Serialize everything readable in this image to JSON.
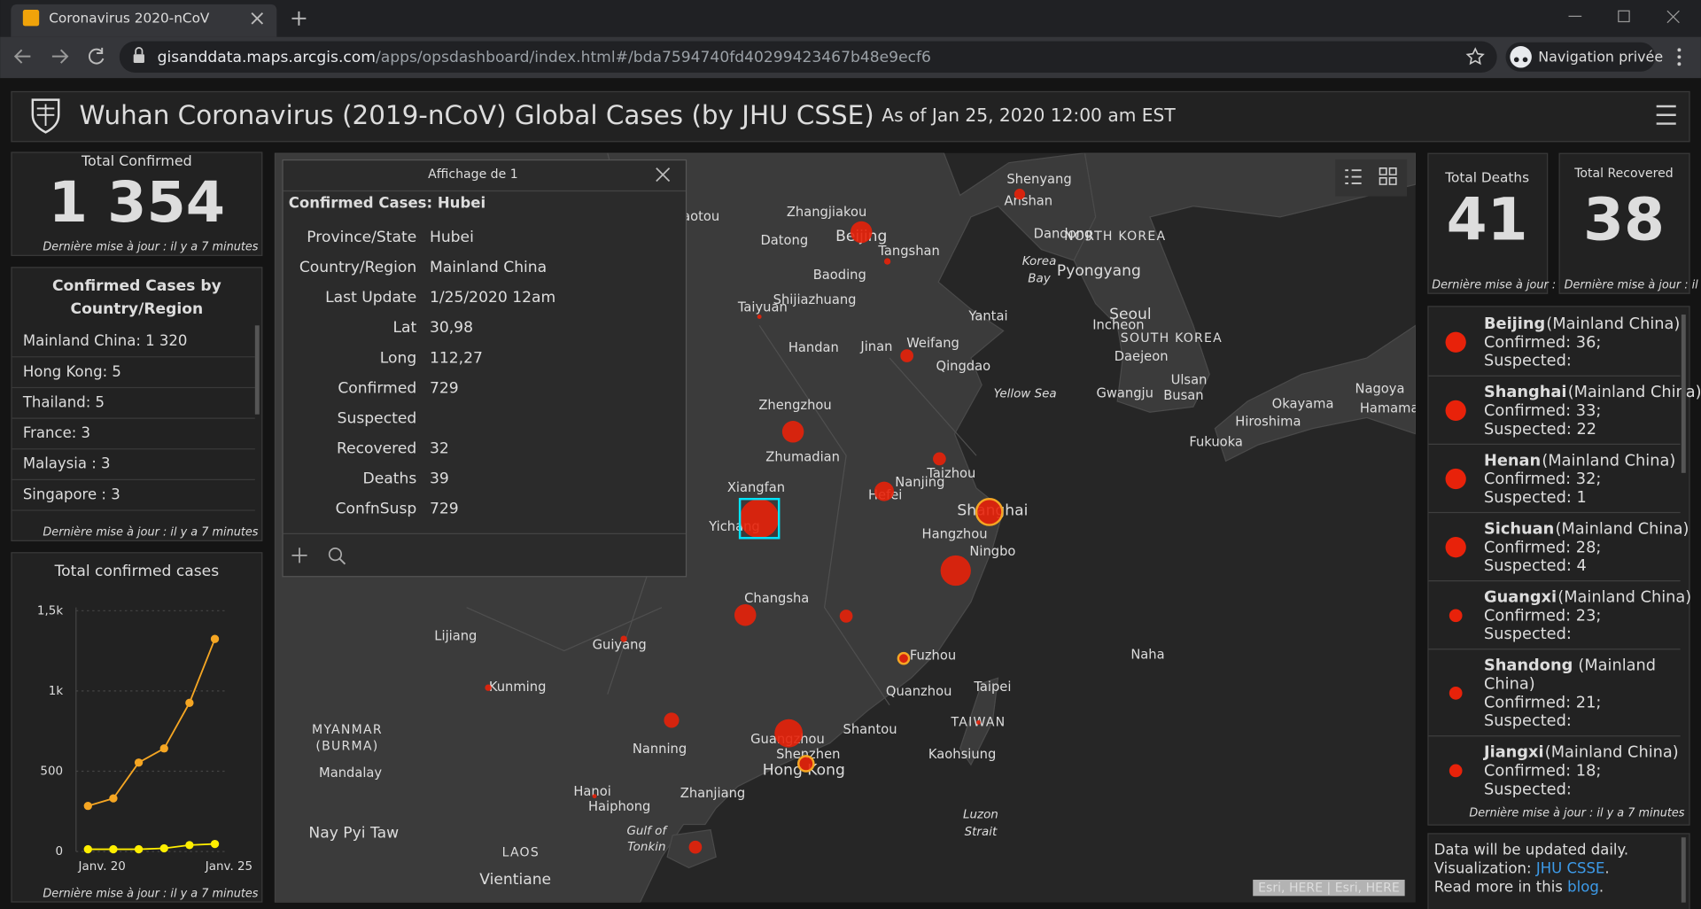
{
  "browser": {
    "tab_title": "Coronavirus 2020-nCoV",
    "url_domain": "gisanddata.maps.arcgis.com",
    "url_path": "/apps/opsdashboard/index.html#/bda7594740fd40299423467b48e9ecf6",
    "incognito": "Navigation privée"
  },
  "header": {
    "title": "Wuhan Coronavirus (2019-nCoV) Global Cases (by JHU CSSE)",
    "subtitle": "As of Jan 25, 2020 12:00 am EST"
  },
  "total_confirmed": {
    "label": "Total Confirmed",
    "value": "1 354",
    "footer": "Dernière mise à jour : il y a 7 minutes"
  },
  "country_list": {
    "title_lines": [
      "Confirmed Cases by",
      "Country/Region"
    ],
    "items": [
      "Mainland China:  1 320",
      "Hong Kong:  5",
      "Thailand:  5",
      "France:  3",
      "Malaysia :  3",
      "Singapore :  3"
    ],
    "footer": "Dernière mise à jour : il y a 7 minutes"
  },
  "chart": {
    "type": "line",
    "title": "Total confirmed cases",
    "categories": [
      "Janv. 20",
      null,
      null,
      null,
      null,
      "Janv. 25"
    ],
    "ylim": [
      0,
      1500
    ],
    "yticks": [
      0,
      500,
      {
        "value": 1000,
        "label": "1k"
      },
      {
        "value": 1500,
        "label": "1,5k"
      }
    ],
    "grid": true,
    "series": [
      {
        "color": "#f5a623",
        "values": [
          284,
          331,
          554,
          642,
          926,
          1324
        ]
      },
      {
        "color": "#ffee00",
        "values": [
          14,
          14,
          14,
          20,
          40,
          47
        ]
      }
    ],
    "footer": "Dernière mise à jour : il y a 7 minutes"
  },
  "popup": {
    "header": "Affichage de 1",
    "title": "Confirmed Cases: Hubei",
    "rows": [
      {
        "label": "Province/State",
        "value": "Hubei"
      },
      {
        "label": "Country/Region",
        "value": "Mainland China"
      },
      {
        "label": "Last Update",
        "value": "1/25/2020 12am"
      },
      {
        "label": "Lat",
        "value": "30,98"
      },
      {
        "label": "Long",
        "value": "112,27"
      },
      {
        "label": "Confirmed",
        "value": "729"
      },
      {
        "label": "Suspected"
      },
      {
        "label": "Recovered",
        "value": "32"
      },
      {
        "label": "Deaths",
        "value": "39"
      },
      {
        "label": "ConfnSusp",
        "value": "729"
      }
    ]
  },
  "map": {
    "labels": [
      "Shenyang",
      "Anshan",
      "Zhangjiakou",
      "Beijing",
      "Datong",
      "Tangshan",
      "Dandong",
      "NORTH KOREA",
      "Korea",
      "Bay",
      "Pyongyang",
      "Baoding",
      "Shijiazhuang",
      "Taiyuan",
      "Yantai",
      "Seoul",
      "Incheon",
      "Handan",
      "Jinan",
      "Weifang",
      "SOUTH KOREA",
      "Daejeon",
      "Qingdao",
      "Ulsan",
      "Busan",
      "Gwangju",
      "Yellow Sea",
      "Nagoya",
      "Hamamatsu",
      "Okayama",
      "Hiroshima",
      "Fukuoka",
      "Zhengzhou",
      "Zhumadian",
      "Taizhou",
      "Nanjing",
      "Xiangfan",
      "Hefei",
      "Shanghai",
      "Yichang",
      "Hangzhou",
      "Ningbo",
      "Changsha",
      "Lijiang",
      "Guiyang",
      "Fuzhou",
      "Naha",
      "Kunming",
      "Quanzhou",
      "Taipei",
      "MYANMAR",
      "(BURMA)",
      "TAIWAN",
      "Nanning",
      "Shantou",
      "Guangzhou",
      "Shenzhen",
      "Hong Kong",
      "Kaohsiung",
      "Mandalay",
      "Hanoi",
      "Zhanjiang",
      "Haiphong",
      "Luzon",
      "Strait",
      "Gulf of",
      "Tonkin",
      "Nay Pyi Taw",
      "LAOS",
      "Vientiane",
      "Baotou"
    ],
    "attribution": "Esri, HERE | Esri, HERE"
  },
  "total_deaths": {
    "label": "Total Deaths",
    "value": "41",
    "footer": "Dernière mise à jour :"
  },
  "total_recovered": {
    "label": "Total Recovered",
    "value": "38",
    "footer": "Dernière mise à jour : il"
  },
  "province_list": {
    "items": [
      {
        "name": "Beijing",
        "region": "(Mainland China)",
        "confirmed": "Confirmed: 36;",
        "suspected": "Suspected:"
      },
      {
        "name": "Shanghai",
        "region": "(Mainland China)",
        "confirmed": "Confirmed: 33;",
        "suspected": "Suspected: 22"
      },
      {
        "name": "Henan",
        "region": "(Mainland China)",
        "confirmed": "Confirmed: 32;",
        "suspected": "Suspected: 1"
      },
      {
        "name": "Sichuan",
        "region": "(Mainland China)",
        "confirmed": "Confirmed: 28;",
        "suspected": "Suspected: 4"
      },
      {
        "name": "Guangxi",
        "region": "(Mainland China)",
        "confirmed": "Confirmed: 23;",
        "suspected": "Suspected:"
      },
      {
        "name": "Shandong",
        "region": [
          "(Mainland",
          "China)"
        ],
        "confirmed": "Confirmed: 21;",
        "suspected": "Suspected:"
      },
      {
        "name": "Jiangxi",
        "region": "(Mainland China)",
        "confirmed": "Confirmed: 18;",
        "suspected": "Suspected:"
      }
    ],
    "footer": "Dernière mise à jour : il y a 7 minutes"
  },
  "info": {
    "line1": "Data will be updated daily.",
    "line2_prefix": "Visualization: ",
    "line2_link": "JHU CSSE",
    "line3_prefix": "Read more in this ",
    "line3_link": "blog",
    "period": "."
  }
}
